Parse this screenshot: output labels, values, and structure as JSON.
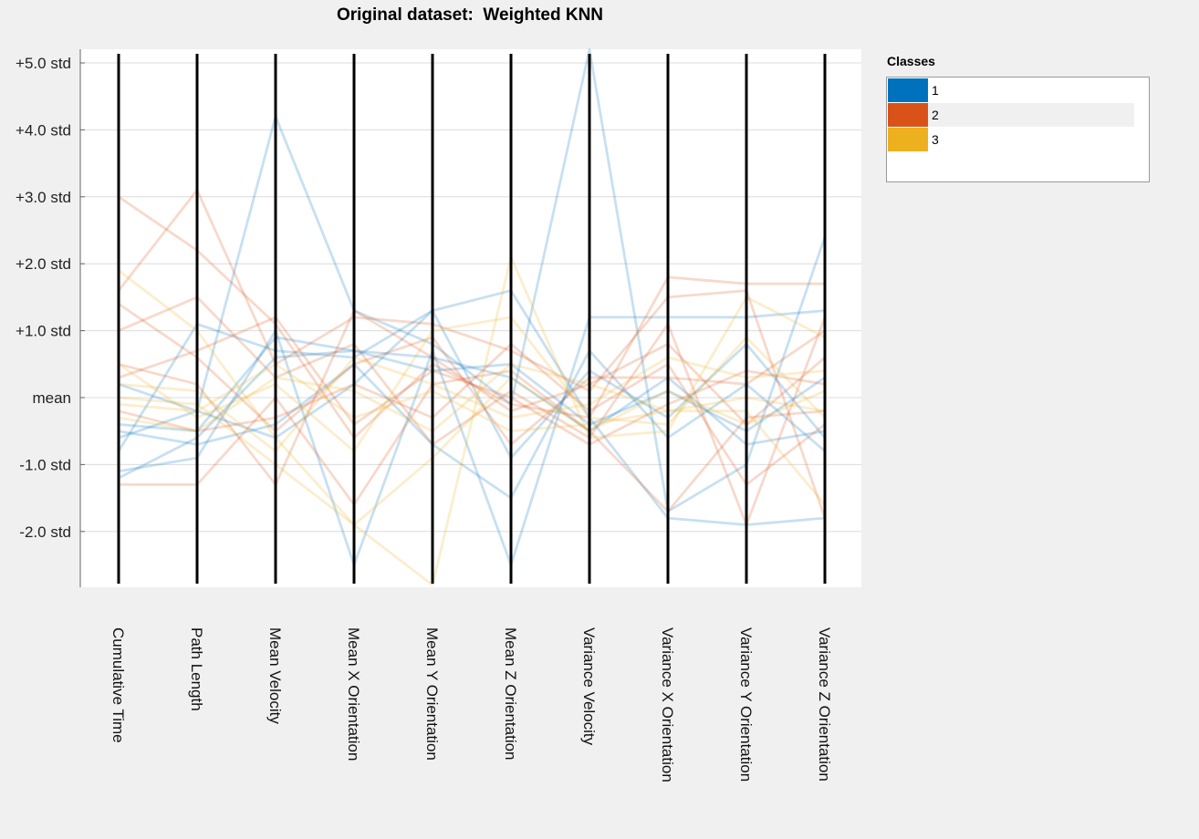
{
  "title": "Original dataset:  Weighted KNN",
  "chart_data": {
    "type": "parallel-coordinates",
    "title": "Original dataset:  Weighted KNN",
    "axes": [
      "Cumulative Time",
      "Path Length",
      "Mean Velocity",
      "Mean X Orientation",
      "Mean Y Orientation",
      "Mean Z Orientation",
      "Variance Velocity",
      "Variance X Orientation",
      "Variance Y Orientation",
      "Variance Z Orientation"
    ],
    "y_ticks": [
      {
        "value": 5,
        "label": "+5.0 std"
      },
      {
        "value": 4,
        "label": "+4.0 std"
      },
      {
        "value": 3,
        "label": "+3.0 std"
      },
      {
        "value": 2,
        "label": "+2.0 std"
      },
      {
        "value": 1,
        "label": "+1.0 std"
      },
      {
        "value": 0,
        "label": "mean"
      },
      {
        "value": -1,
        "label": "-1.0 std"
      },
      {
        "value": -2,
        "label": "-2.0 std"
      }
    ],
    "ylim": [
      -2.8,
      5.2
    ],
    "grid": true,
    "legend_placement": "right",
    "series": [
      {
        "class": "1",
        "color": "#0072bd",
        "values": [
          -0.6,
          -0.2,
          4.2,
          1.3,
          0.8,
          -0.1,
          5.2,
          -1.7,
          -1.0,
          2.4
        ]
      },
      {
        "class": "1",
        "color": "#0072bd",
        "values": [
          -1.1,
          -0.9,
          1.0,
          -2.5,
          0.7,
          -2.5,
          1.2,
          1.2,
          1.2,
          1.3
        ]
      },
      {
        "class": "1",
        "color": "#0072bd",
        "values": [
          -0.8,
          1.1,
          0.7,
          0.6,
          1.3,
          1.6,
          -0.3,
          -1.8,
          -1.9,
          -1.8
        ]
      },
      {
        "class": "1",
        "color": "#0072bd",
        "values": [
          -0.4,
          -0.5,
          0.9,
          0.7,
          0.6,
          0.3,
          -0.5,
          0.3,
          -0.7,
          -0.5
        ]
      },
      {
        "class": "1",
        "color": "#0072bd",
        "values": [
          0.2,
          -0.2,
          -0.6,
          0.2,
          1.3,
          -0.9,
          0.4,
          -0.3,
          0.8,
          -0.6
        ]
      },
      {
        "class": "1",
        "color": "#0072bd",
        "values": [
          -1.2,
          -0.6,
          0.6,
          0.7,
          0.4,
          0.5,
          -0.4,
          0.1,
          -0.5,
          0.3
        ]
      },
      {
        "class": "1",
        "color": "#0072bd",
        "values": [
          -0.5,
          -0.7,
          -0.4,
          0.5,
          -0.7,
          -1.5,
          0.7,
          -0.6,
          0.2,
          -0.8
        ]
      },
      {
        "class": "2",
        "color": "#d95319",
        "values": [
          3.0,
          2.2,
          1.1,
          -0.6,
          0.5,
          -0.1,
          -0.3,
          1.8,
          1.7,
          1.7
        ]
      },
      {
        "class": "2",
        "color": "#d95319",
        "values": [
          1.6,
          3.1,
          0.5,
          1.2,
          1.1,
          0.7,
          0.1,
          1.5,
          1.6,
          -1.8
        ]
      },
      {
        "class": "2",
        "color": "#d95319",
        "values": [
          1.0,
          1.5,
          0.3,
          0.8,
          -0.7,
          0.1,
          -0.6,
          1.1,
          -1.9,
          1.2
        ]
      },
      {
        "class": "2",
        "color": "#d95319",
        "values": [
          0.5,
          0.2,
          -1.3,
          1.3,
          0.6,
          -0.2,
          0.2,
          0.8,
          -0.4,
          0.6
        ]
      },
      {
        "class": "2",
        "color": "#d95319",
        "values": [
          -1.3,
          -1.3,
          0.0,
          -1.6,
          0.2,
          0.4,
          -0.5,
          -1.7,
          -0.3,
          -0.2
        ]
      },
      {
        "class": "2",
        "color": "#d95319",
        "values": [
          1.4,
          0.6,
          -0.5,
          0.5,
          0.9,
          -0.7,
          0.3,
          0.3,
          0.2,
          1.0
        ]
      },
      {
        "class": "2",
        "color": "#d95319",
        "values": [
          -0.2,
          -0.5,
          -0.3,
          0.2,
          -0.3,
          0.8,
          -0.2,
          0.5,
          -1.3,
          -0.4
        ]
      },
      {
        "class": "2",
        "color": "#d95319",
        "values": [
          0.3,
          0.7,
          1.2,
          -0.4,
          0.4,
          0.0,
          -0.7,
          -0.1,
          0.4,
          0.2
        ]
      },
      {
        "class": "3",
        "color": "#edb120",
        "values": [
          1.9,
          1.0,
          -0.6,
          -1.9,
          -2.8,
          2.1,
          -0.6,
          -0.5,
          1.5,
          0.9
        ]
      },
      {
        "class": "3",
        "color": "#edb120",
        "values": [
          0.5,
          -0.3,
          0.2,
          -0.8,
          1.0,
          1.2,
          -0.3,
          -0.4,
          0.9,
          -0.3
        ]
      },
      {
        "class": "3",
        "color": "#edb120",
        "values": [
          0.0,
          -0.1,
          -1.0,
          -1.9,
          -0.9,
          0.3,
          -0.5,
          0.1,
          -0.4,
          0.1
        ]
      },
      {
        "class": "3",
        "color": "#edb120",
        "values": [
          -0.3,
          -0.5,
          0.3,
          0.1,
          -0.5,
          0.5,
          0.2,
          -0.2,
          -0.2,
          -1.6
        ]
      },
      {
        "class": "3",
        "color": "#edb120",
        "values": [
          0.2,
          0.1,
          -0.8,
          0.6,
          0.2,
          -0.3,
          -0.1,
          0.6,
          0.3,
          0.4
        ]
      },
      {
        "class": "3",
        "color": "#edb120",
        "values": [
          -0.1,
          -0.2,
          0.5,
          -0.3,
          0.1,
          -0.5,
          -0.4,
          -0.2,
          0.0,
          -0.2
        ]
      }
    ]
  },
  "legend": {
    "title": "Classes",
    "items": [
      {
        "label": "1",
        "color": "#0072bd"
      },
      {
        "label": "2",
        "color": "#d95319"
      },
      {
        "label": "3",
        "color": "#edb120"
      }
    ]
  }
}
